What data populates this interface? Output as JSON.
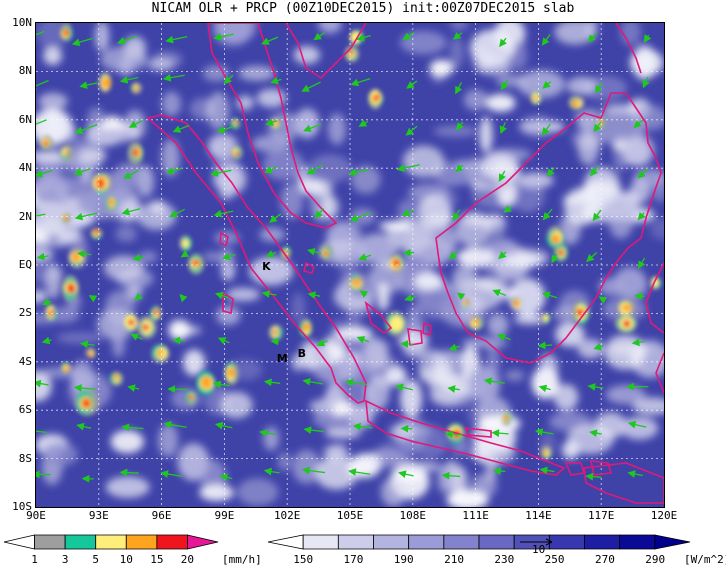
{
  "title": "NICAM OLR + PRCP (00Z10DEC2015) init:00Z07DEC2015 slab",
  "map": {
    "lat_labels": [
      "10N",
      "8N",
      "6N",
      "4N",
      "2N",
      "EQ",
      "2S",
      "4S",
      "6S",
      "8S",
      "10S"
    ],
    "lon_labels": [
      "90E",
      "93E",
      "96E",
      "99E",
      "102E",
      "105E",
      "108E",
      "111E",
      "114E",
      "117E",
      "120E"
    ],
    "lat_range": [
      -10,
      10
    ],
    "lon_range": [
      90,
      120
    ],
    "place_labels": [
      {
        "text": "K",
        "lon": 100.8,
        "lat": -0.2
      },
      {
        "text": "M",
        "lon": 101.5,
        "lat": -4.0
      },
      {
        "text": "B",
        "lon": 102.5,
        "lat": -3.8
      }
    ],
    "coastline_color": "#e0197a",
    "wind_arrow_color": "#1ec81e",
    "background_olr_color": "#3f43a8"
  },
  "precip_legend": {
    "ticks": [
      "1",
      "3",
      "5",
      "10",
      "15",
      "20"
    ],
    "unit": "[mm/h]",
    "colors": [
      "#ffffff",
      "#9e9e9e",
      "#14c89b",
      "#ffee7a",
      "#ffa41e",
      "#f0141e",
      "#e61696"
    ]
  },
  "olr_legend": {
    "ticks": [
      "150",
      "170",
      "190",
      "210",
      "230",
      "250",
      "270",
      "290"
    ],
    "unit": "[W/m^2]",
    "reference_vector_label": "10",
    "colors": [
      "#ffffff",
      "#e6e6f5",
      "#cdcdeb",
      "#b4b4e1",
      "#9b9bd7",
      "#8282cd",
      "#6969c3",
      "#5050b9",
      "#3737af",
      "#1e1ea5",
      "#0a0a96",
      "#00008c"
    ]
  }
}
